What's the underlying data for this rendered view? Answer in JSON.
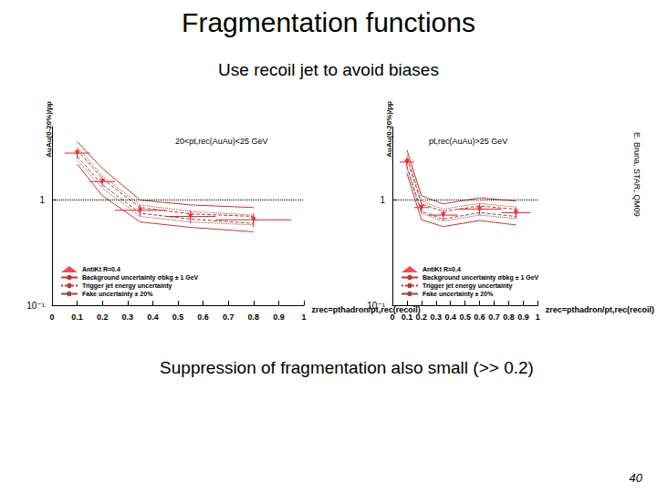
{
  "title": "Fragmentation functions",
  "subtitle": "Use recoil jet to avoid biases",
  "credit": "E. Bruna, STAR, QM09",
  "caption": "Suppression of fragmentation also small (>> 0.2)",
  "page_number": 40,
  "chart_data": [
    {
      "type": "scatter",
      "title": "20<pt,rec(AuAu)<25 GeV",
      "x_label": "zrec=pthadron/pt,rec(recoil)",
      "y_label": "AuAu(0-20%)/pp",
      "xlim": [
        0,
        1
      ],
      "xticks": [
        0,
        0.1,
        0.2,
        0.3,
        0.4,
        0.5,
        0.6,
        0.7,
        0.8,
        0.9,
        1
      ],
      "ylim": [
        0.1,
        5
      ],
      "yticks": [
        {
          "value": 0.1,
          "label": "10⁻¹"
        },
        1
      ],
      "log": "y",
      "grid": false,
      "legend": "lower left",
      "reference": 1,
      "series": [
        {
          "name": "AntiKt R=0.4",
          "type": "scatter",
          "color": "#e8202a",
          "marker": "triangle_down",
          "x": [
            0.1,
            0.2,
            0.35,
            0.55,
            0.8
          ],
          "values": [
            2.8,
            1.5,
            0.8,
            0.7,
            0.65
          ],
          "errors": [
            0.3,
            0.15,
            0.1,
            0.1,
            0.1
          ],
          "x_errors": [
            0.05,
            0.05,
            0.1,
            0.1,
            0.15
          ]
        },
        {
          "name": "Background uncertainty σbkg ± 1 GeV",
          "type": "band",
          "color": "#c0392b",
          "line_style": "solid",
          "x": [
            0.1,
            0.2,
            0.35,
            0.55,
            0.8
          ],
          "low": [
            2.2,
            1.1,
            0.62,
            0.55,
            0.5
          ],
          "high": [
            3.6,
            2.0,
            1.0,
            0.9,
            0.85
          ]
        },
        {
          "name": "Trigger jet energy uncertainty",
          "type": "band",
          "color": "#b03a3a",
          "line_style": "dotted",
          "x": [
            0.1,
            0.2,
            0.35,
            0.55,
            0.8
          ],
          "low": [
            2.4,
            1.3,
            0.7,
            0.62,
            0.58
          ],
          "high": [
            3.2,
            1.7,
            0.9,
            0.78,
            0.72
          ]
        },
        {
          "name": "Fake uncertainty ± 20%",
          "type": "band",
          "color": "#8c4a4a",
          "line_style": "dashed",
          "x": [
            0.1,
            0.2,
            0.35,
            0.55,
            0.8
          ],
          "low": [
            2.6,
            1.4,
            0.75,
            0.66,
            0.6
          ],
          "high": [
            3.0,
            1.6,
            0.85,
            0.74,
            0.7
          ]
        }
      ]
    },
    {
      "type": "scatter",
      "title": "pt,rec(AuAu)>25 GeV",
      "x_label": "zrec=pthadron/pt,rec(recoil)",
      "y_label": "AuAu(0-20%)/pp",
      "xlim": [
        0,
        1
      ],
      "xticks": [
        0,
        0.1,
        0.2,
        0.3,
        0.4,
        0.5,
        0.6,
        0.7,
        0.8,
        0.9,
        1
      ],
      "ylim": [
        0.1,
        5
      ],
      "yticks": [
        {
          "value": 0.1,
          "label": "10⁻¹"
        },
        1
      ],
      "log": "y",
      "grid": false,
      "legend": "lower left",
      "reference": 1,
      "series": [
        {
          "name": "AntiKt R=0.4",
          "type": "scatter",
          "color": "#e8202a",
          "marker": "triangle_down",
          "x": [
            0.1,
            0.2,
            0.35,
            0.6,
            0.85
          ],
          "values": [
            2.3,
            0.85,
            0.72,
            0.82,
            0.76
          ],
          "errors": [
            0.25,
            0.1,
            0.08,
            0.1,
            0.09
          ],
          "x_errors": [
            0.05,
            0.05,
            0.1,
            0.15,
            0.1
          ]
        },
        {
          "name": "Background uncertainty σbkg ± 1 GeV",
          "type": "band",
          "color": "#c0392b",
          "line_style": "solid",
          "x": [
            0.1,
            0.2,
            0.35,
            0.6,
            0.85
          ],
          "low": [
            1.8,
            0.65,
            0.56,
            0.64,
            0.58
          ],
          "high": [
            3.0,
            1.1,
            0.92,
            1.05,
            0.98
          ]
        },
        {
          "name": "Trigger jet energy uncertainty",
          "type": "band",
          "color": "#b03a3a",
          "line_style": "dotted",
          "x": [
            0.1,
            0.2,
            0.35,
            0.6,
            0.85
          ],
          "low": [
            2.0,
            0.75,
            0.63,
            0.72,
            0.67
          ],
          "high": [
            2.7,
            0.98,
            0.82,
            0.93,
            0.86
          ]
        },
        {
          "name": "Fake uncertainty ± 20%",
          "type": "band",
          "color": "#8c4a4a",
          "line_style": "dashed",
          "x": [
            0.1,
            0.2,
            0.35,
            0.6,
            0.85
          ],
          "low": [
            2.1,
            0.78,
            0.66,
            0.76,
            0.7
          ],
          "high": [
            2.5,
            0.92,
            0.78,
            0.88,
            0.82
          ]
        }
      ]
    }
  ]
}
